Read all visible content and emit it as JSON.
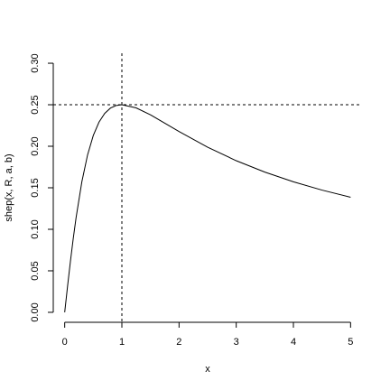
{
  "chart_data": {
    "type": "line",
    "x_label": "x",
    "y_label": "shep(x, R, a, b)",
    "x": [
      0,
      0.05,
      0.1,
      0.15,
      0.2,
      0.3,
      0.4,
      0.5,
      0.6,
      0.7,
      0.8,
      0.9,
      1,
      1.25,
      1.5,
      2,
      2.5,
      3,
      3.5,
      4,
      4.5,
      5
    ],
    "series": [
      {
        "color": "#000000",
        "values": [
          0,
          0.0314,
          0.0613,
          0.0892,
          0.1145,
          0.1572,
          0.1896,
          0.213,
          0.2291,
          0.2396,
          0.246,
          0.2491,
          0.25,
          0.2462,
          0.2379,
          0.2177,
          0.1989,
          0.1826,
          0.1689,
          0.1572,
          0.1472,
          0.1386
        ]
      }
    ],
    "hline": 0.25,
    "vline": 1,
    "xlim": [
      -0.2,
      5.2
    ],
    "ylim": [
      -0.012,
      0.312
    ],
    "xticks": [
      0,
      1,
      2,
      3,
      4,
      5
    ],
    "yticks": [
      {
        "value": 0,
        "label": "0.00"
      },
      {
        "value": 0.05,
        "label": "0.05"
      },
      {
        "value": 0.1,
        "label": "0.10"
      },
      {
        "value": 0.15,
        "label": "0.15"
      },
      {
        "value": 0.2,
        "label": "0.20"
      },
      {
        "value": 0.25,
        "label": "0.25"
      },
      {
        "value": 0.3,
        "label": "0.30"
      }
    ]
  }
}
